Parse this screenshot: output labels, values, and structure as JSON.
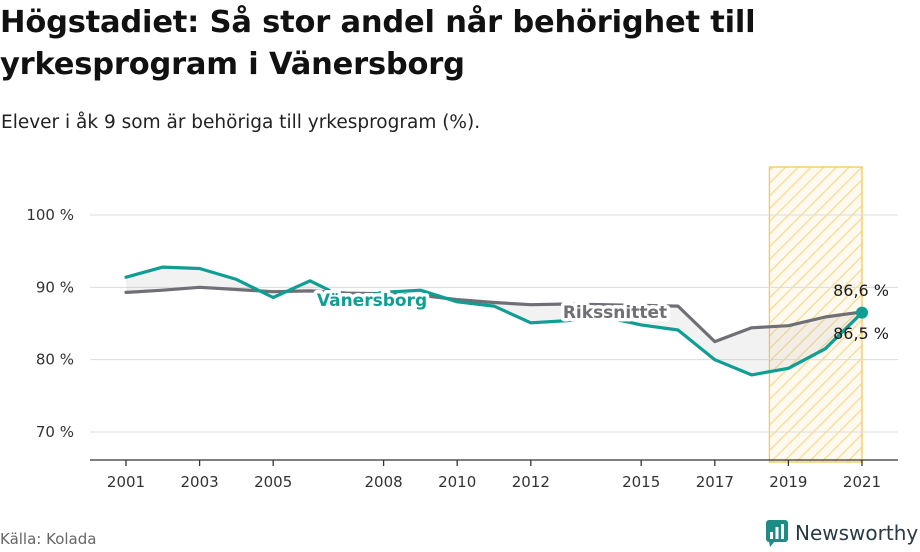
{
  "header": {
    "title": "Högstadiet: Så stor andel når behörighet till yrkesprogram i Vänersborg",
    "subtitle": "Elever i åk 9 som är behöriga till yrkesprogram (%)."
  },
  "footer": {
    "source": "Källa: Kolada",
    "brand": "Newsworthy",
    "brand_icon": "bar-chart-bubble-icon",
    "brand_color": "#1d8c84"
  },
  "chart_data": {
    "type": "line",
    "x": [
      2001,
      2002,
      2003,
      2004,
      2005,
      2006,
      2007,
      2008,
      2009,
      2010,
      2011,
      2012,
      2013,
      2014,
      2015,
      2016,
      2017,
      2018,
      2019,
      2020,
      2021
    ],
    "x_ticks": [
      "2001",
      "2003",
      "2005",
      "2008",
      "2010",
      "2012",
      "2015",
      "2017",
      "2019",
      "2021"
    ],
    "y_ticks": [
      "70 %",
      "80 %",
      "90 %",
      "100 %"
    ],
    "ylim": [
      65,
      105
    ],
    "grid": true,
    "highlight_period": [
      2019,
      2021
    ],
    "series": [
      {
        "name": "Vänersborg",
        "color": "#0e9e93",
        "values": [
          91.4,
          92.8,
          92.6,
          91.1,
          88.6,
          90.9,
          88.4,
          89.3,
          89.6,
          88.0,
          87.4,
          85.1,
          85.4,
          85.9,
          84.8,
          84.1,
          80.0,
          77.9,
          78.8,
          81.5,
          86.5
        ],
        "end_label": "86,5 %"
      },
      {
        "name": "Rikssnittet",
        "color": "#6f6f76",
        "values": [
          89.3,
          89.6,
          90.0,
          89.7,
          89.4,
          89.5,
          89.2,
          89.1,
          88.9,
          88.3,
          87.9,
          87.6,
          87.7,
          87.6,
          87.5,
          87.4,
          82.5,
          84.4,
          84.7,
          85.9,
          86.6
        ],
        "end_label": "86,6 %"
      }
    ]
  }
}
